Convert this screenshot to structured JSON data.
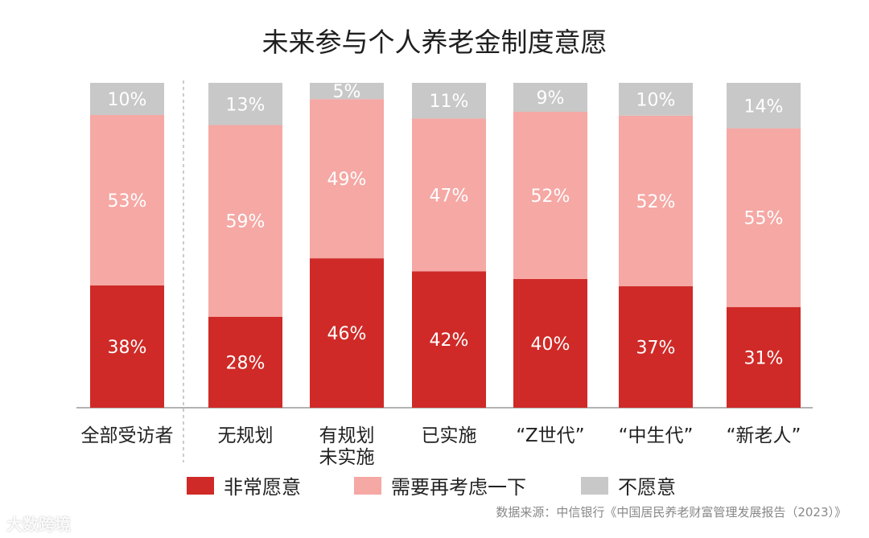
{
  "chart_data": {
    "type": "bar",
    "title": "未来参与个人养老金制度意愿",
    "stacked": true,
    "categories": [
      "全部受访者",
      "无规划",
      "有规划\n未实施",
      "已实施",
      "“Z世代”",
      "“中生代”",
      "“新老人”"
    ],
    "series": [
      {
        "name": "非常愿意",
        "values": [
          38,
          28,
          46,
          42,
          40,
          37,
          31
        ],
        "labels": [
          "38%",
          "28%",
          "46%",
          "42%",
          "40%",
          "37%",
          "31%"
        ]
      },
      {
        "name": "需要再考虑一下",
        "values": [
          53,
          59,
          49,
          47,
          52,
          52,
          55
        ],
        "labels": [
          "53%",
          "59%",
          "49%",
          "47%",
          "52%",
          "52%",
          "55%"
        ]
      },
      {
        "name": "不愿意",
        "values": [
          10,
          13,
          5,
          11,
          9,
          10,
          14
        ],
        "labels": [
          "10%",
          "13%",
          "5%",
          "11%",
          "9%",
          "10%",
          "14%"
        ]
      }
    ],
    "colors": [
      "#cf2a27",
      "#f5a8a4",
      "#c8c8c8"
    ],
    "label_colors": [
      "#ffffff",
      "#ffffff",
      "#ffffff"
    ],
    "ylim": [
      0,
      100
    ],
    "grid": false,
    "legend_position": "bottom",
    "xlabel": "",
    "ylabel": ""
  },
  "legend": [
    {
      "label": "非常愿意",
      "color": "#cf2a27"
    },
    {
      "label": "需要再考虑一下",
      "color": "#f5a8a4"
    },
    {
      "label": "不愿意",
      "color": "#c8c8c8"
    }
  ],
  "source_note": "数据来源：中信银行《中国居民养老财富管理发展报告（2023）》",
  "watermark": "大数跨境"
}
